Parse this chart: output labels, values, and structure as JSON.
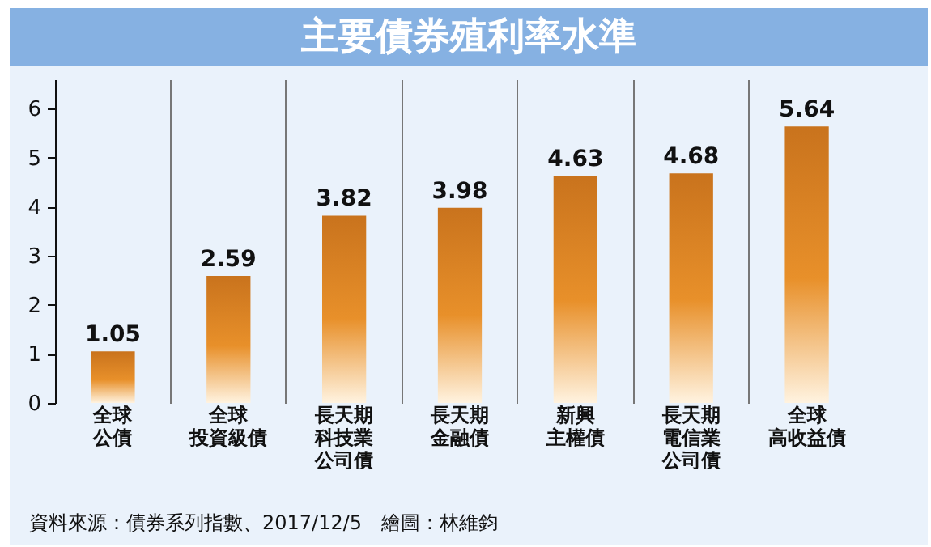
{
  "chart_data": {
    "type": "bar",
    "title": "主要債券殖利率水準",
    "categories": [
      "全球公債",
      "全球投資級債",
      "長天期科技業公司債",
      "長天期金融債",
      "新興主權債",
      "長天期電信業公司債",
      "全球高收益債"
    ],
    "values": [
      1.05,
      2.59,
      3.82,
      3.98,
      4.63,
      4.68,
      5.64
    ],
    "color": "#e8902a",
    "data_labels": true,
    "grid": "x",
    "ylim": [
      0,
      6.6
    ],
    "yticks": [
      0,
      1,
      2,
      3,
      4,
      5,
      6
    ],
    "annotations": [
      "資料來源：債券系列指數、2017/12/5　繪圖：林維鈞"
    ]
  }
}
